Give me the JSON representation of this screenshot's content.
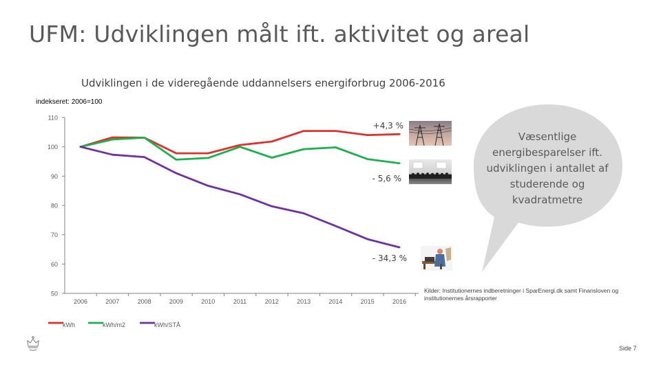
{
  "slide": {
    "title": "UFM: Udviklingen målt ift. aktivitet og areal",
    "page_label": "Side 7",
    "sources_text": "Kilder: Institutionernes indberetninger i SparEnergi.dk samt Finansloven og institutionernes årsrapporter",
    "callout_text": "Væsentlige energibesparelser ift. udviklingen i antallet af studerende og kvadratmetre"
  },
  "colors": {
    "kwh": "#e0302a",
    "kwh_m2": "#1ab14a",
    "kwh_sta": "#7030a0",
    "callout_fill": "#d9d9d9",
    "axis": "#808080"
  },
  "photos": [
    "power-pylons-photo",
    "auditorium-photo",
    "student-at-desk-photo"
  ],
  "chart_data": {
    "type": "line",
    "title": "Udviklingen i de videregående uddannelsers energiforbrug 2006-2016",
    "subtitle": "indekseret: 2006=100",
    "xlabel": "",
    "ylabel": "",
    "x": [
      "2006",
      "2007",
      "2008",
      "2009",
      "2010",
      "2011",
      "2012",
      "2013",
      "2014",
      "2015",
      "2016"
    ],
    "ylim": [
      50,
      110
    ],
    "yticks": [
      "50",
      "60",
      "70",
      "80",
      "90",
      "100",
      "110"
    ],
    "grid": false,
    "legend_position": "bottom-left",
    "series": [
      {
        "name": "kWh",
        "values": [
          100,
          103.2,
          103.1,
          97.8,
          97.8,
          100.6,
          101.8,
          105.4,
          105.4,
          104.0,
          104.3
        ],
        "end_label": "+4,3 %"
      },
      {
        "name": "kWh/m2",
        "values": [
          100,
          102.5,
          103.1,
          95.6,
          96.2,
          100.0,
          96.3,
          99.2,
          99.8,
          95.8,
          94.4
        ],
        "end_label": "- 5,6 %"
      },
      {
        "name": "kWh/STÅ",
        "values": [
          100,
          97.3,
          96.5,
          91.0,
          86.7,
          83.8,
          79.7,
          77.3,
          73.0,
          68.5,
          65.7
        ],
        "end_label": "- 34,3 %"
      }
    ]
  }
}
